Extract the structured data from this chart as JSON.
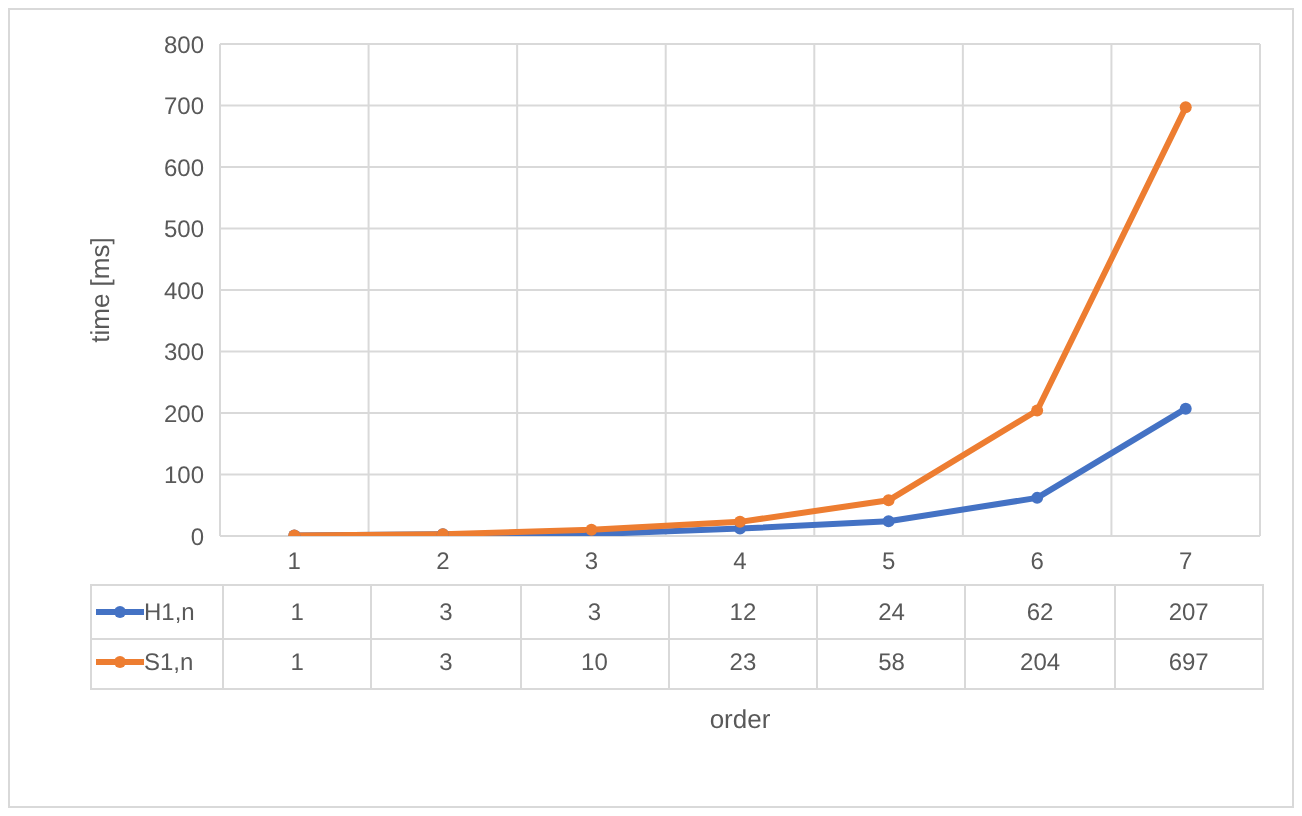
{
  "chart_data": {
    "type": "line",
    "xlabel": "order",
    "ylabel": "time [ms]",
    "categories": [
      "1",
      "2",
      "3",
      "4",
      "5",
      "6",
      "7"
    ],
    "series": [
      {
        "name": "H1,n",
        "color": "#4472c4",
        "values": [
          1,
          3,
          3,
          12,
          24,
          62,
          207
        ]
      },
      {
        "name": "S1,n",
        "color": "#ed7d31",
        "values": [
          1,
          3,
          10,
          23,
          58,
          204,
          697
        ]
      }
    ],
    "ylim": [
      0,
      800
    ],
    "yticks": [
      0,
      100,
      200,
      300,
      400,
      500,
      600,
      700,
      800
    ],
    "grid": true,
    "legend": "bottom",
    "marker": "circle",
    "line_style": "solid",
    "data_labels": true
  }
}
